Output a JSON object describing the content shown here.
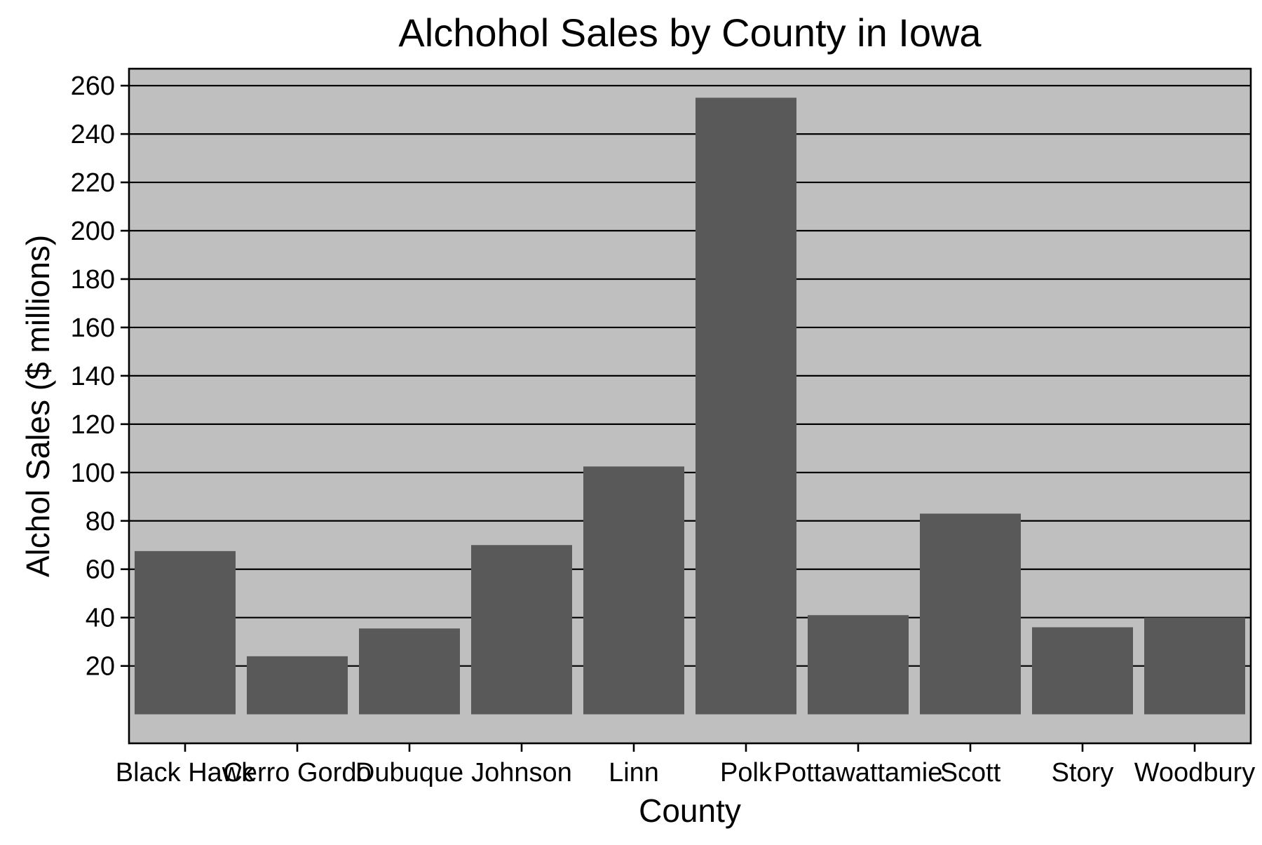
{
  "chart_data": {
    "type": "bar",
    "title": "Alchohol Sales by County in Iowa",
    "xlabel": "County",
    "ylabel": "Alchol Sales ($ millions)",
    "categories": [
      "Black Hawk",
      "Cerro Gordo",
      "Dubuque",
      "Johnson",
      "Linn",
      "Polk",
      "Pottawattamie",
      "Scott",
      "Story",
      "Woodbury"
    ],
    "values": [
      67.5,
      24,
      35.5,
      70,
      102.5,
      255,
      41,
      83,
      36,
      40
    ],
    "ylim": [
      -12,
      267
    ],
    "yticks": [
      20,
      40,
      60,
      80,
      100,
      120,
      140,
      160,
      180,
      200,
      220,
      240,
      260
    ],
    "grid": true,
    "colors": {
      "bar": "#595959",
      "panel": "#bfbfbf",
      "grid": "#000000",
      "axis": "#000000"
    }
  }
}
